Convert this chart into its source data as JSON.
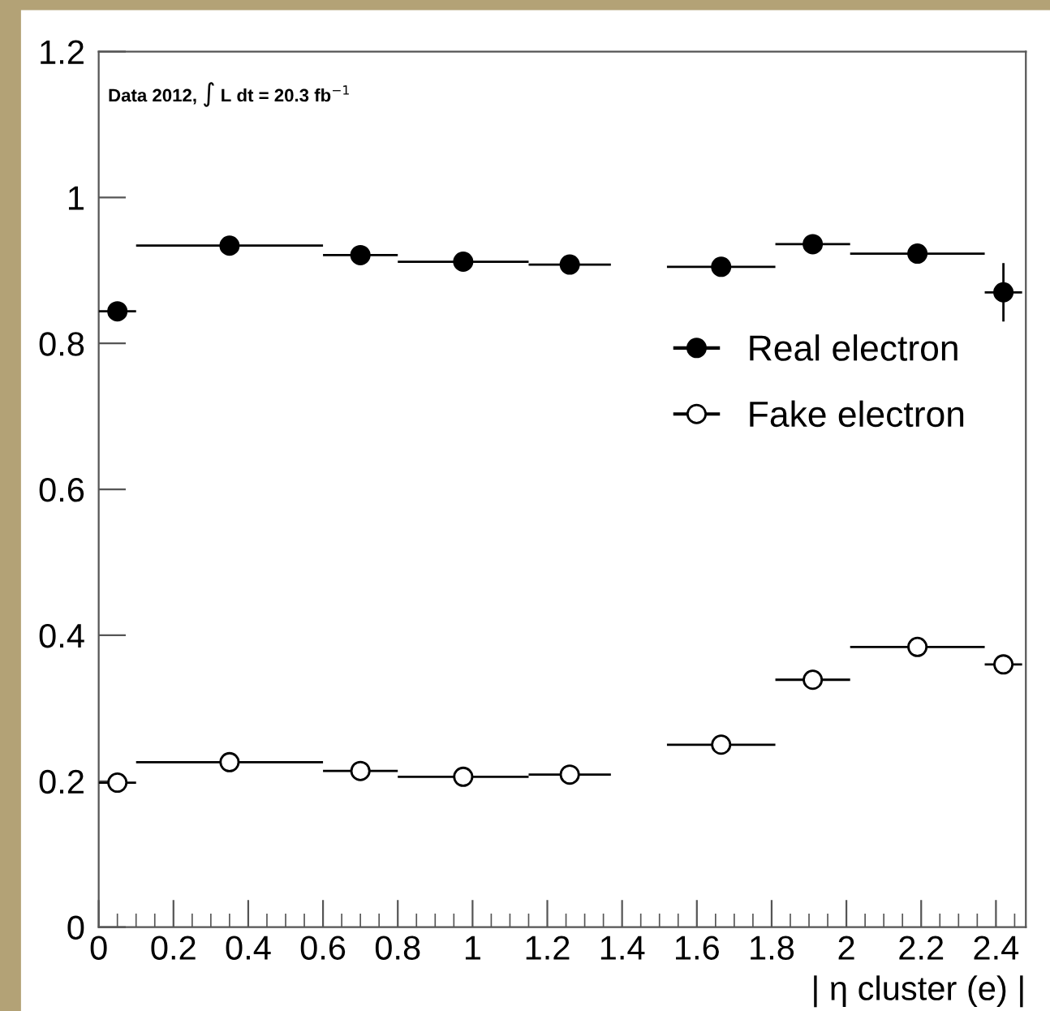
{
  "chart_data": {
    "type": "scatter",
    "xlabel": "| η cluster (e) |",
    "annotations": [
      "Data 2012, ∫ L dt = 20.3 fb$^{−1}$"
    ],
    "x": [
      0.05,
      0.35,
      0.7,
      0.975,
      1.26,
      1.665,
      1.91,
      2.19,
      2.42
    ],
    "series": [
      {
        "name": "Real electron",
        "color": "#000000",
        "values": [
          0.844,
          0.934,
          0.921,
          0.912,
          0.908,
          0.905,
          0.936,
          0.923,
          0.87
        ],
        "xerrors": [
          0.05,
          0.25,
          0.1,
          0.175,
          0.11,
          0.145,
          0.1,
          0.18,
          0.05
        ],
        "errors": [
          null,
          null,
          null,
          null,
          null,
          null,
          null,
          null,
          0.04
        ]
      },
      {
        "name": "Fake electron",
        "color": "#ffffff",
        "values": [
          0.198,
          0.226,
          0.214,
          0.206,
          0.209,
          0.25,
          0.339,
          0.384,
          0.36
        ],
        "xerrors": [
          0.05,
          0.25,
          0.1,
          0.175,
          0.11,
          0.145,
          0.1,
          0.18,
          0.05
        ]
      }
    ],
    "marker": "circle",
    "xlim": [
      0,
      2.48
    ],
    "ylim": [
      0,
      1.2
    ],
    "xticks": [
      0,
      0.2,
      0.4,
      0.6,
      0.8,
      1,
      1.2,
      1.4,
      1.6,
      1.8,
      2,
      2.2,
      2.4
    ],
    "yticks": [
      0,
      0.2,
      0.4,
      0.6,
      0.8,
      1,
      1.2
    ],
    "grid": false,
    "legend": "right"
  }
}
